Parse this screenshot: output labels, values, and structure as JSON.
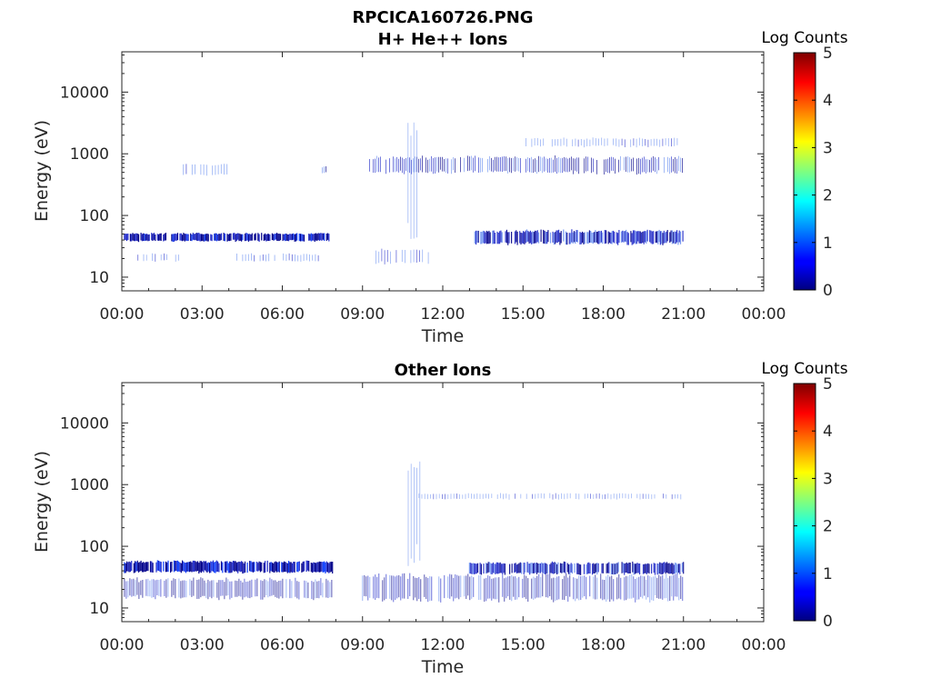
{
  "figure_title": "RPCICA160726.PNG",
  "colors": {
    "spectrum_dark": "#00008b",
    "spectrum_mid": "#1e28c8",
    "spectrum_light": "#6a8ff0",
    "axis": "#262626"
  },
  "chart_data": [
    {
      "type": "heatmap",
      "title": "H+ He++ Ions",
      "xlabel": "Time",
      "ylabel": "Energy (eV)",
      "xticks": [
        "00:00",
        "03:00",
        "06:00",
        "09:00",
        "12:00",
        "15:00",
        "18:00",
        "21:00",
        "00:00"
      ],
      "xlim_hours": [
        0,
        24
      ],
      "ylim": [
        6,
        45000
      ],
      "yscale": "log",
      "yticks": [
        10,
        100,
        1000,
        10000
      ],
      "ytick_labels": [
        "10",
        "100",
        "1000",
        "10000"
      ],
      "colorbar": {
        "label": "Log Counts",
        "range": [
          0,
          5
        ],
        "ticks": [
          "0",
          "1",
          "2",
          "3",
          "4",
          "5"
        ]
      },
      "features": [
        {
          "t_start": 0.1,
          "t_end": 7.8,
          "e_low": 38,
          "e_high": 52,
          "level": 1.0
        },
        {
          "t_start": 0.6,
          "t_end": 2.2,
          "e_low": 18,
          "e_high": 24,
          "level": 0.3
        },
        {
          "t_start": 4.3,
          "t_end": 7.4,
          "e_low": 18,
          "e_high": 24,
          "level": 0.4
        },
        {
          "t_start": 2.3,
          "t_end": 4.0,
          "e_low": 450,
          "e_high": 700,
          "level": 0.4
        },
        {
          "t_start": 7.5,
          "t_end": 7.7,
          "e_low": 480,
          "e_high": 620,
          "level": 0.6
        },
        {
          "t_start": 9.2,
          "t_end": 21.0,
          "e_low": 480,
          "e_high": 900,
          "level": 0.5
        },
        {
          "t_start": 15.0,
          "t_end": 21.0,
          "e_low": 1300,
          "e_high": 1800,
          "level": 0.3
        },
        {
          "t_start": 13.2,
          "t_end": 21.0,
          "e_low": 34,
          "e_high": 58,
          "level": 0.8
        },
        {
          "t_start": 10.7,
          "t_end": 11.1,
          "e_low": 40,
          "e_high": 4000,
          "level": 0.2
        },
        {
          "t_start": 9.5,
          "t_end": 11.5,
          "e_low": 16,
          "e_high": 28,
          "level": 0.3
        }
      ]
    },
    {
      "type": "heatmap",
      "title": "Other Ions",
      "xlabel": "Time",
      "ylabel": "Energy (eV)",
      "xticks": [
        "00:00",
        "03:00",
        "06:00",
        "09:00",
        "12:00",
        "15:00",
        "18:00",
        "21:00",
        "00:00"
      ],
      "xlim_hours": [
        0,
        24
      ],
      "ylim": [
        6,
        45000
      ],
      "yscale": "log",
      "yticks": [
        10,
        100,
        1000,
        10000
      ],
      "ytick_labels": [
        "10",
        "100",
        "1000",
        "10000"
      ],
      "colorbar": {
        "label": "Log Counts",
        "range": [
          0,
          5
        ],
        "ticks": [
          "0",
          "1",
          "2",
          "3",
          "4",
          "5"
        ]
      },
      "features": [
        {
          "t_start": 0.1,
          "t_end": 7.9,
          "e_low": 37,
          "e_high": 58,
          "level": 1.2
        },
        {
          "t_start": 0.1,
          "t_end": 7.9,
          "e_low": 14,
          "e_high": 30,
          "level": 0.6
        },
        {
          "t_start": 9.0,
          "t_end": 21.0,
          "e_low": 13,
          "e_high": 35,
          "level": 0.6
        },
        {
          "t_start": 13.0,
          "t_end": 21.0,
          "e_low": 35,
          "e_high": 55,
          "level": 0.8
        },
        {
          "t_start": 11.0,
          "t_end": 21.0,
          "e_low": 580,
          "e_high": 720,
          "level": 0.2
        },
        {
          "t_start": 10.6,
          "t_end": 11.3,
          "e_low": 50,
          "e_high": 2500,
          "level": 0.2
        }
      ]
    }
  ]
}
